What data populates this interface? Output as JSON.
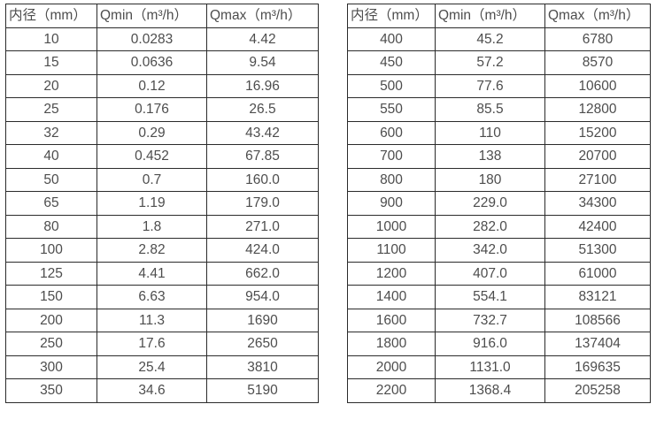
{
  "page": {
    "background": "#ffffff",
    "text_color": "#4d4d4d",
    "border_color": "#2b2b2b"
  },
  "tables": [
    {
      "name": "flow-table-small-diameters",
      "headers": [
        "内径（mm）",
        "Qmin（m³/h）",
        "Qmax（m³/h）"
      ],
      "rows": [
        [
          "10",
          "0.0283",
          "4.42"
        ],
        [
          "15",
          "0.0636",
          "9.54"
        ],
        [
          "20",
          "0.12",
          "16.96"
        ],
        [
          "25",
          "0.176",
          "26.5"
        ],
        [
          "32",
          "0.29",
          "43.42"
        ],
        [
          "40",
          "0.452",
          "67.85"
        ],
        [
          "50",
          "0.7",
          "160.0"
        ],
        [
          "65",
          "1.19",
          "179.0"
        ],
        [
          "80",
          "1.8",
          "271.0"
        ],
        [
          "100",
          "2.82",
          "424.0"
        ],
        [
          "125",
          "4.41",
          "662.0"
        ],
        [
          "150",
          "6.63",
          "954.0"
        ],
        [
          "200",
          "11.3",
          "1690"
        ],
        [
          "250",
          "17.6",
          "2650"
        ],
        [
          "300",
          "25.4",
          "3810"
        ],
        [
          "350",
          "34.6",
          "5190"
        ]
      ]
    },
    {
      "name": "flow-table-large-diameters",
      "headers": [
        "内径（mm）",
        "Qmin（m³/h）",
        "Qmax（m³/h）"
      ],
      "rows": [
        [
          "400",
          "45.2",
          "6780"
        ],
        [
          "450",
          "57.2",
          "8570"
        ],
        [
          "500",
          "77.6",
          "10600"
        ],
        [
          "550",
          "85.5",
          "12800"
        ],
        [
          "600",
          "110",
          "15200"
        ],
        [
          "700",
          "138",
          "20700"
        ],
        [
          "800",
          "180",
          "27100"
        ],
        [
          "900",
          "229.0",
          "34300"
        ],
        [
          "1000",
          "282.0",
          "42400"
        ],
        [
          "1100",
          "342.0",
          "51300"
        ],
        [
          "1200",
          "407.0",
          "61000"
        ],
        [
          "1400",
          "554.1",
          "83121"
        ],
        [
          "1600",
          "732.7",
          "108566"
        ],
        [
          "1800",
          "916.0",
          "137404"
        ],
        [
          "2000",
          "1131.0",
          "169635"
        ],
        [
          "2200",
          "1368.4",
          "205258"
        ]
      ]
    }
  ]
}
